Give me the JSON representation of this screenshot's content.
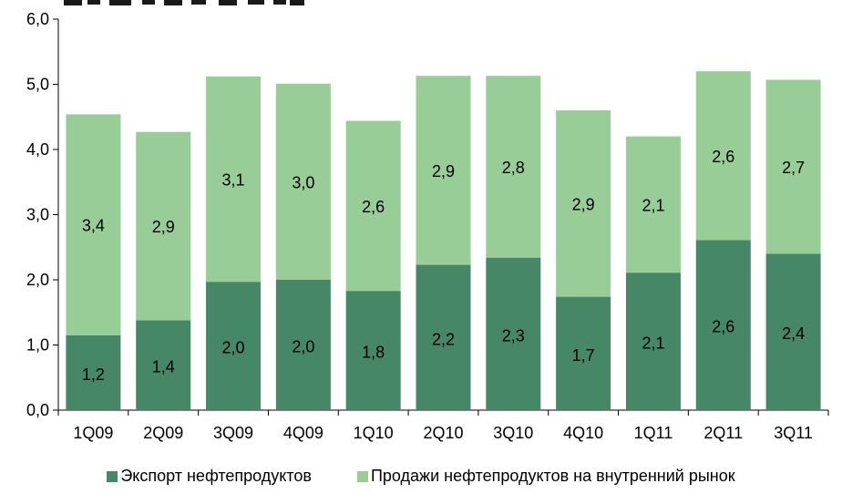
{
  "colors": {
    "export": "#458766",
    "domestic": "#98cd98",
    "axis": "#000000"
  },
  "chart_data": {
    "type": "bar",
    "stacked": true,
    "categories": [
      "1Q09",
      "2Q09",
      "3Q09",
      "4Q09",
      "1Q10",
      "2Q10",
      "3Q10",
      "4Q10",
      "1Q11",
      "2Q11",
      "3Q11"
    ],
    "series": [
      {
        "name": "Экспорт нефтепродуктов",
        "values": [
          1.15,
          1.38,
          1.97,
          2.0,
          1.83,
          2.23,
          2.34,
          1.74,
          2.11,
          2.61,
          2.4
        ],
        "labels": [
          "1,2",
          "1,4",
          "2,0",
          "2,0",
          "1,8",
          "2,2",
          "2,3",
          "1,7",
          "2,1",
          "2,6",
          "2,4"
        ],
        "color": "#458766"
      },
      {
        "name": "Продажи нефтепродуктов на внутренний рынок",
        "values": [
          3.39,
          2.89,
          3.15,
          3.01,
          2.61,
          2.9,
          2.79,
          2.86,
          2.09,
          2.59,
          2.67
        ],
        "labels": [
          "3,4",
          "2,9",
          "3,1",
          "3,0",
          "2,6",
          "2,9",
          "2,8",
          "2,9",
          "2,1",
          "2,6",
          "2,7"
        ],
        "color": "#98cd98"
      }
    ],
    "ylim": [
      0,
      6
    ],
    "yticks": [
      "0,0",
      "1,0",
      "2,0",
      "3,0",
      "4,0",
      "5,0",
      "6,0"
    ],
    "grid": false,
    "legend": "bottom"
  }
}
